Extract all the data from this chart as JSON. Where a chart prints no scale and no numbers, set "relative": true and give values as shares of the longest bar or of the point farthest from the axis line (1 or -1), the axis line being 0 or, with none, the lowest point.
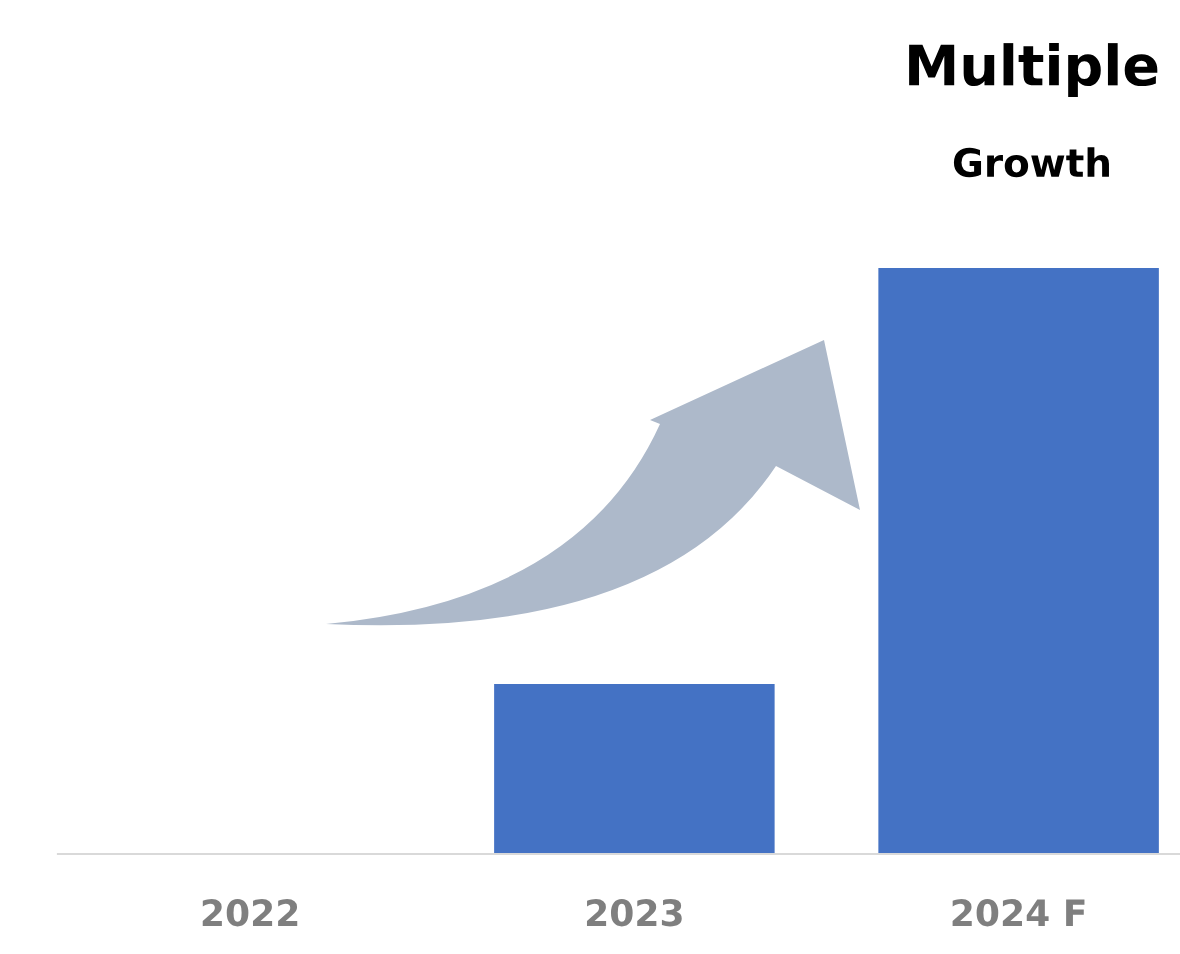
{
  "chart_data": {
    "type": "bar",
    "title": "Multiple",
    "subtitle": "Growth",
    "categories": [
      "2022",
      "2023",
      "2024 F"
    ],
    "values": [
      0,
      0.29,
      1
    ],
    "color": "#4472c4",
    "relative": true
  }
}
